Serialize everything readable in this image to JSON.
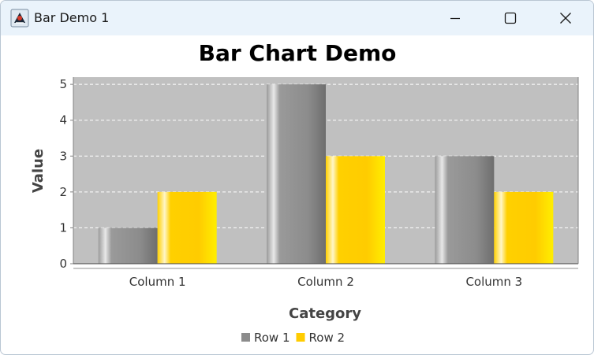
{
  "window": {
    "title": "Bar Demo 1",
    "app_icon": "java-duke-icon",
    "controls": {
      "minimize": "minimize-icon",
      "maximize": "maximize-icon",
      "close": "close-icon"
    }
  },
  "chart_data": {
    "type": "bar",
    "title": "Bar Chart Demo",
    "xlabel": "Category",
    "ylabel": "Value",
    "categories": [
      "Column 1",
      "Column 2",
      "Column 3"
    ],
    "series": [
      {
        "name": "Row 1",
        "values": [
          1,
          5,
          3
        ],
        "color": "#8c8c8c",
        "light": "#e8e8e8",
        "dark": "#9a9a9a",
        "edge": "#6e6e6e"
      },
      {
        "name": "Row 2",
        "values": [
          2,
          3,
          2
        ],
        "color": "#ffcc00",
        "light": "#fff6c8",
        "dark": "#ffd000",
        "edge": "#ffee00"
      }
    ],
    "ylim": [
      0,
      5.2
    ],
    "yticks": [
      0,
      1,
      2,
      3,
      4,
      5
    ],
    "grid": true,
    "legend_position": "bottom",
    "plot_background": "#c0c0c0"
  }
}
